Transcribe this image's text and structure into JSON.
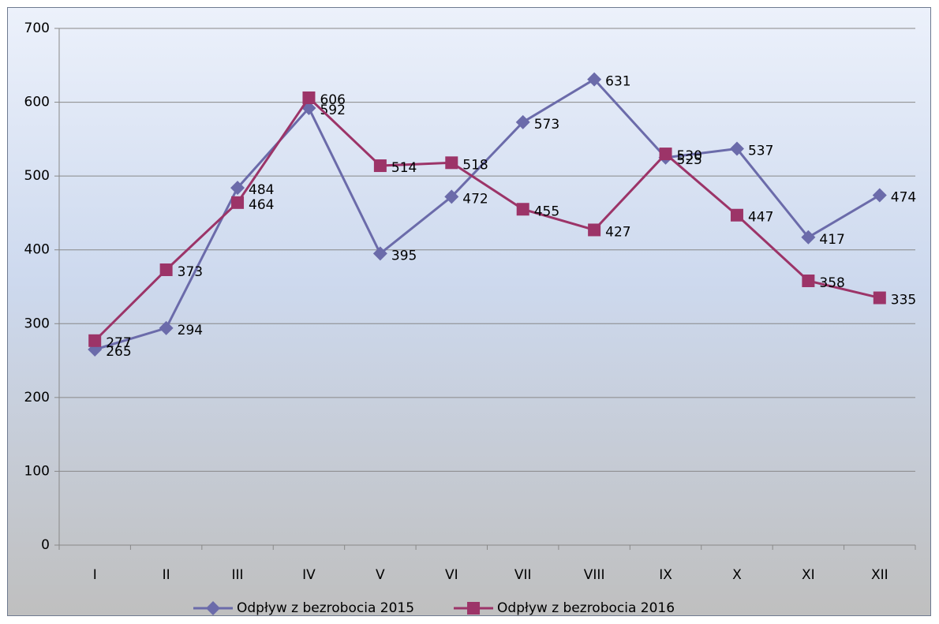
{
  "chart_data": {
    "type": "line",
    "categories": [
      "I",
      "II",
      "III",
      "IV",
      "V",
      "VI",
      "VII",
      "VIII",
      "IX",
      "X",
      "XI",
      "XII"
    ],
    "series": [
      {
        "name": "Odpływ z bezrobocia 2015",
        "color": "#6b6baa",
        "marker": "diamond",
        "values": [
          265,
          294,
          484,
          592,
          395,
          472,
          573,
          631,
          525,
          537,
          417,
          474
        ]
      },
      {
        "name": "Odpływ z bezrobocia 2016",
        "color": "#9c3468",
        "marker": "square",
        "values": [
          277,
          373,
          464,
          606,
          514,
          518,
          455,
          427,
          530,
          447,
          358,
          335
        ]
      }
    ],
    "ylim": [
      0,
      700
    ],
    "yticks": [
      0,
      100,
      200,
      300,
      400,
      500,
      600,
      700
    ],
    "grid": true,
    "legend": "bottom"
  }
}
